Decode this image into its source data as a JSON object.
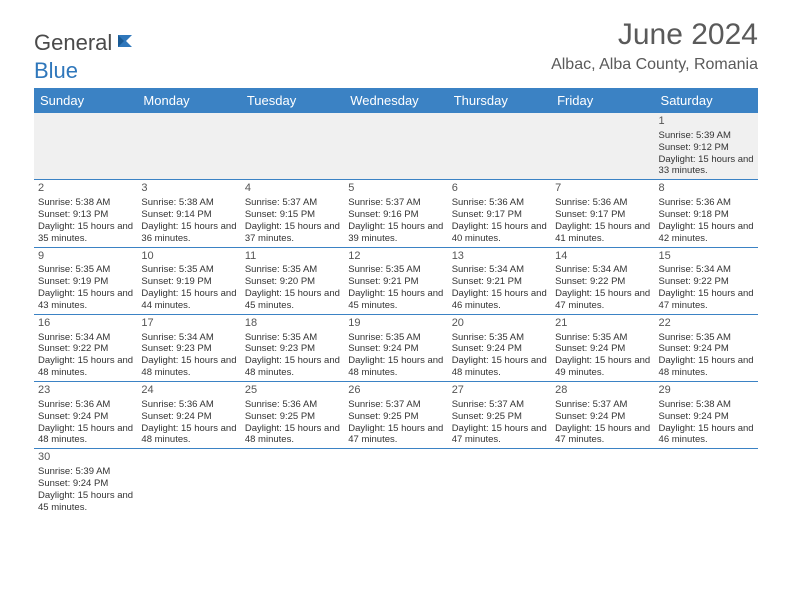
{
  "logo": {
    "part1": "General",
    "part2": "Blue"
  },
  "title": "June 2024",
  "location": "Albac, Alba County, Romania",
  "dayNames": [
    "Sunday",
    "Monday",
    "Tuesday",
    "Wednesday",
    "Thursday",
    "Friday",
    "Saturday"
  ],
  "colors": {
    "headerBar": "#3b82c4",
    "rowDivider": "#3b82c4",
    "week1Bg": "#f0f0f0",
    "text": "#333333",
    "titleText": "#5a5a5a",
    "logoGray": "#4a4a4a",
    "logoBlue": "#2f77bb"
  },
  "typography": {
    "monthTitleSize": 30,
    "locationSize": 16,
    "dayHeaderSize": 13,
    "dayNumSize": 11,
    "cellTextSize": 9.5
  },
  "weeks": [
    [
      {
        "day": null
      },
      {
        "day": null
      },
      {
        "day": null
      },
      {
        "day": null
      },
      {
        "day": null
      },
      {
        "day": null
      },
      {
        "day": 1,
        "sunrise": "Sunrise: 5:39 AM",
        "sunset": "Sunset: 9:12 PM",
        "daylight": "Daylight: 15 hours and 33 minutes."
      }
    ],
    [
      {
        "day": 2,
        "sunrise": "Sunrise: 5:38 AM",
        "sunset": "Sunset: 9:13 PM",
        "daylight": "Daylight: 15 hours and 35 minutes."
      },
      {
        "day": 3,
        "sunrise": "Sunrise: 5:38 AM",
        "sunset": "Sunset: 9:14 PM",
        "daylight": "Daylight: 15 hours and 36 minutes."
      },
      {
        "day": 4,
        "sunrise": "Sunrise: 5:37 AM",
        "sunset": "Sunset: 9:15 PM",
        "daylight": "Daylight: 15 hours and 37 minutes."
      },
      {
        "day": 5,
        "sunrise": "Sunrise: 5:37 AM",
        "sunset": "Sunset: 9:16 PM",
        "daylight": "Daylight: 15 hours and 39 minutes."
      },
      {
        "day": 6,
        "sunrise": "Sunrise: 5:36 AM",
        "sunset": "Sunset: 9:17 PM",
        "daylight": "Daylight: 15 hours and 40 minutes."
      },
      {
        "day": 7,
        "sunrise": "Sunrise: 5:36 AM",
        "sunset": "Sunset: 9:17 PM",
        "daylight": "Daylight: 15 hours and 41 minutes."
      },
      {
        "day": 8,
        "sunrise": "Sunrise: 5:36 AM",
        "sunset": "Sunset: 9:18 PM",
        "daylight": "Daylight: 15 hours and 42 minutes."
      }
    ],
    [
      {
        "day": 9,
        "sunrise": "Sunrise: 5:35 AM",
        "sunset": "Sunset: 9:19 PM",
        "daylight": "Daylight: 15 hours and 43 minutes."
      },
      {
        "day": 10,
        "sunrise": "Sunrise: 5:35 AM",
        "sunset": "Sunset: 9:19 PM",
        "daylight": "Daylight: 15 hours and 44 minutes."
      },
      {
        "day": 11,
        "sunrise": "Sunrise: 5:35 AM",
        "sunset": "Sunset: 9:20 PM",
        "daylight": "Daylight: 15 hours and 45 minutes."
      },
      {
        "day": 12,
        "sunrise": "Sunrise: 5:35 AM",
        "sunset": "Sunset: 9:21 PM",
        "daylight": "Daylight: 15 hours and 45 minutes."
      },
      {
        "day": 13,
        "sunrise": "Sunrise: 5:34 AM",
        "sunset": "Sunset: 9:21 PM",
        "daylight": "Daylight: 15 hours and 46 minutes."
      },
      {
        "day": 14,
        "sunrise": "Sunrise: 5:34 AM",
        "sunset": "Sunset: 9:22 PM",
        "daylight": "Daylight: 15 hours and 47 minutes."
      },
      {
        "day": 15,
        "sunrise": "Sunrise: 5:34 AM",
        "sunset": "Sunset: 9:22 PM",
        "daylight": "Daylight: 15 hours and 47 minutes."
      }
    ],
    [
      {
        "day": 16,
        "sunrise": "Sunrise: 5:34 AM",
        "sunset": "Sunset: 9:22 PM",
        "daylight": "Daylight: 15 hours and 48 minutes."
      },
      {
        "day": 17,
        "sunrise": "Sunrise: 5:34 AM",
        "sunset": "Sunset: 9:23 PM",
        "daylight": "Daylight: 15 hours and 48 minutes."
      },
      {
        "day": 18,
        "sunrise": "Sunrise: 5:35 AM",
        "sunset": "Sunset: 9:23 PM",
        "daylight": "Daylight: 15 hours and 48 minutes."
      },
      {
        "day": 19,
        "sunrise": "Sunrise: 5:35 AM",
        "sunset": "Sunset: 9:24 PM",
        "daylight": "Daylight: 15 hours and 48 minutes."
      },
      {
        "day": 20,
        "sunrise": "Sunrise: 5:35 AM",
        "sunset": "Sunset: 9:24 PM",
        "daylight": "Daylight: 15 hours and 48 minutes."
      },
      {
        "day": 21,
        "sunrise": "Sunrise: 5:35 AM",
        "sunset": "Sunset: 9:24 PM",
        "daylight": "Daylight: 15 hours and 49 minutes."
      },
      {
        "day": 22,
        "sunrise": "Sunrise: 5:35 AM",
        "sunset": "Sunset: 9:24 PM",
        "daylight": "Daylight: 15 hours and 48 minutes."
      }
    ],
    [
      {
        "day": 23,
        "sunrise": "Sunrise: 5:36 AM",
        "sunset": "Sunset: 9:24 PM",
        "daylight": "Daylight: 15 hours and 48 minutes."
      },
      {
        "day": 24,
        "sunrise": "Sunrise: 5:36 AM",
        "sunset": "Sunset: 9:24 PM",
        "daylight": "Daylight: 15 hours and 48 minutes."
      },
      {
        "day": 25,
        "sunrise": "Sunrise: 5:36 AM",
        "sunset": "Sunset: 9:25 PM",
        "daylight": "Daylight: 15 hours and 48 minutes."
      },
      {
        "day": 26,
        "sunrise": "Sunrise: 5:37 AM",
        "sunset": "Sunset: 9:25 PM",
        "daylight": "Daylight: 15 hours and 47 minutes."
      },
      {
        "day": 27,
        "sunrise": "Sunrise: 5:37 AM",
        "sunset": "Sunset: 9:25 PM",
        "daylight": "Daylight: 15 hours and 47 minutes."
      },
      {
        "day": 28,
        "sunrise": "Sunrise: 5:37 AM",
        "sunset": "Sunset: 9:24 PM",
        "daylight": "Daylight: 15 hours and 47 minutes."
      },
      {
        "day": 29,
        "sunrise": "Sunrise: 5:38 AM",
        "sunset": "Sunset: 9:24 PM",
        "daylight": "Daylight: 15 hours and 46 minutes."
      }
    ],
    [
      {
        "day": 30,
        "sunrise": "Sunrise: 5:39 AM",
        "sunset": "Sunset: 9:24 PM",
        "daylight": "Daylight: 15 hours and 45 minutes."
      },
      {
        "day": null
      },
      {
        "day": null
      },
      {
        "day": null
      },
      {
        "day": null
      },
      {
        "day": null
      },
      {
        "day": null
      }
    ]
  ]
}
